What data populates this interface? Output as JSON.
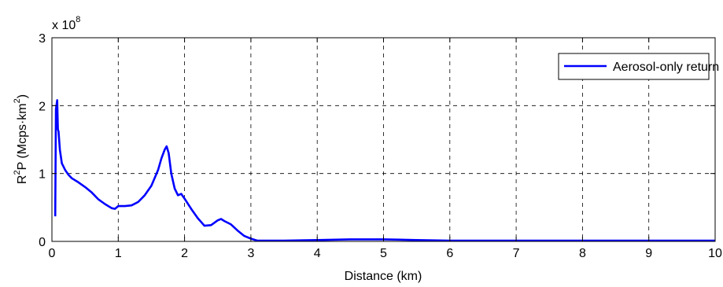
{
  "chart_data": {
    "type": "line",
    "xlabel": "Distance (km)",
    "ylabel_base": "R",
    "ylabel_sup1": "2",
    "ylabel_mid": "P  (Mcps·km",
    "ylabel_sup2": "2",
    "ylabel_end": ")",
    "y_exponent_prefix": "x 10",
    "y_exponent_power": "8",
    "xlim": [
      0,
      10
    ],
    "ylim": [
      0,
      3
    ],
    "xticks": [
      "0",
      "1",
      "2",
      "3",
      "4",
      "5",
      "6",
      "7",
      "8",
      "9",
      "10"
    ],
    "yticks": [
      "0",
      "1",
      "2",
      "3"
    ],
    "grid": true,
    "legend_position": "top-right",
    "line_color": "#0000ff",
    "series": [
      {
        "name": "Aerosol-only return",
        "x": [
          0.05,
          0.06,
          0.08,
          0.09,
          0.1,
          0.12,
          0.15,
          0.2,
          0.25,
          0.3,
          0.4,
          0.5,
          0.6,
          0.7,
          0.8,
          0.9,
          0.95,
          1.0,
          1.1,
          1.2,
          1.3,
          1.4,
          1.5,
          1.6,
          1.65,
          1.7,
          1.73,
          1.76,
          1.8,
          1.85,
          1.9,
          1.95,
          2.0,
          2.1,
          2.2,
          2.3,
          2.4,
          2.5,
          2.55,
          2.6,
          2.7,
          2.8,
          2.9,
          3.0,
          3.1,
          3.5,
          4.0,
          4.5,
          5.0,
          5.5,
          6.0,
          7.0,
          8.0,
          9.0,
          10.0
        ],
        "values": [
          0.37,
          1.95,
          2.08,
          1.65,
          1.62,
          1.35,
          1.15,
          1.05,
          0.98,
          0.93,
          0.87,
          0.8,
          0.72,
          0.62,
          0.55,
          0.49,
          0.48,
          0.52,
          0.52,
          0.53,
          0.58,
          0.68,
          0.82,
          1.05,
          1.22,
          1.35,
          1.4,
          1.3,
          1.0,
          0.78,
          0.68,
          0.7,
          0.63,
          0.48,
          0.34,
          0.23,
          0.24,
          0.31,
          0.33,
          0.3,
          0.25,
          0.16,
          0.08,
          0.04,
          0.01,
          0.01,
          0.02,
          0.03,
          0.03,
          0.02,
          0.01,
          0.01,
          0.01,
          0.01,
          0.01
        ]
      }
    ]
  }
}
